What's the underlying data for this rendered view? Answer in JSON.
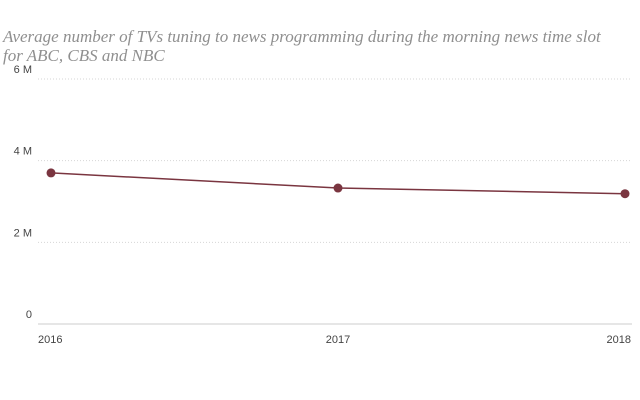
{
  "chart_data": {
    "type": "line",
    "title": "Average number of TVs tuning to news programming during the morning news time slot for ABC, CBS and NBC",
    "xlabel": "",
    "ylabel": "",
    "x": [
      "2016",
      "2017",
      "2018"
    ],
    "series": [
      {
        "values": [
          3.7,
          3.33,
          3.19
        ],
        "color": "#7a3540"
      }
    ],
    "ylim": [
      0,
      6
    ],
    "yticks": [
      {
        "value": 0,
        "label": "0"
      },
      {
        "value": 2,
        "label": "2 M"
      },
      {
        "value": 4,
        "label": "4 M"
      },
      {
        "value": 6,
        "label": "6 M"
      }
    ],
    "grid": true,
    "legend": "none"
  }
}
